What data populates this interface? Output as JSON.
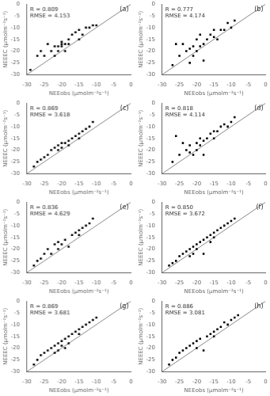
{
  "chart_data": [
    {
      "type": "scatter",
      "title": "(a)",
      "annotations": [
        "R = 0.809",
        "RMSE = 4.153"
      ],
      "xlabel": "NEEobs (μmolm⁻²s⁻¹)",
      "ylabel": "NEEEC (μmolm⁻²s⁻¹)",
      "xlim": [
        -30,
        0
      ],
      "ylim": [
        -30,
        0
      ],
      "xticks": [
        -30,
        -25,
        -20,
        -15,
        -10,
        -5,
        0
      ],
      "yticks": [
        -30,
        -25,
        -20,
        -15,
        -10,
        -5,
        0
      ],
      "grid": false,
      "series": [
        {
          "type": "line",
          "color": "#888888",
          "line_style": "solid",
          "x": [
            -30,
            0
          ],
          "values": [
            -30,
            0
          ]
        },
        {
          "type": "scatter",
          "color": "#000000",
          "marker": "square",
          "x": [
            -29,
            -27,
            -26,
            -25,
            -24,
            -23,
            -22,
            -22,
            -21,
            -21,
            -20,
            -20,
            -20,
            -19,
            -19,
            -18,
            -18,
            -17,
            -16,
            -15,
            -15,
            -14,
            -13,
            -12,
            -11,
            -10
          ],
          "values": [
            -28,
            -22,
            -20,
            -22,
            -17,
            -20,
            -18,
            -22,
            -20,
            -18,
            -18,
            -17,
            -16,
            -20,
            -17,
            -17,
            -15,
            -13,
            -12,
            -15,
            -11,
            -13,
            -10,
            -10,
            -9,
            -9
          ]
        }
      ]
    },
    {
      "type": "scatter",
      "title": "(b)",
      "annotations": [
        "R = 0.777",
        "RMSE = 4.174"
      ],
      "xlabel": "NEEobs (μmolm⁻²s⁻¹)",
      "ylabel": "NEEEC (μmolm⁻²s⁻¹)",
      "xlim": [
        -30,
        0
      ],
      "ylim": [
        -30,
        0
      ],
      "xticks": [
        -30,
        -25,
        -20,
        -15,
        -10,
        -5,
        0
      ],
      "yticks": [
        -30,
        -25,
        -20,
        -15,
        -10,
        -5,
        0
      ],
      "grid": false,
      "series": [
        {
          "type": "line",
          "color": "#888888",
          "line_style": "solid",
          "x": [
            -30,
            0
          ],
          "values": [
            -30,
            0
          ]
        },
        {
          "type": "scatter",
          "color": "#000000",
          "marker": "square",
          "x": [
            -27,
            -26,
            -25,
            -24,
            -23,
            -22,
            -22,
            -21,
            -21,
            -20,
            -20,
            -19,
            -19,
            -18,
            -18,
            -17,
            -16,
            -15,
            -15,
            -14,
            -13,
            -12,
            -11,
            -10,
            -9
          ],
          "values": [
            -26,
            -17,
            -22,
            -17,
            -20,
            -25,
            -19,
            -18,
            -22,
            -20,
            -15,
            -18,
            -13,
            -24,
            -17,
            -15,
            -13,
            -14,
            -11,
            -15,
            -11,
            -11,
            -8,
            -10,
            -7
          ]
        }
      ]
    },
    {
      "type": "scatter",
      "title": "(c)",
      "annotations": [
        "R = 0.869",
        "RMSE = 3.618"
      ],
      "xlabel": "NEEobs (μmolm⁻²s⁻¹)",
      "ylabel": "NEEEC (μmolm⁻²s⁻¹)",
      "xlim": [
        -30,
        0
      ],
      "ylim": [
        -30,
        0
      ],
      "xticks": [
        -30,
        -25,
        -20,
        -15,
        -10,
        -5,
        0
      ],
      "yticks": [
        -30,
        -25,
        -20,
        -15,
        -10,
        -5,
        0
      ],
      "grid": false,
      "series": [
        {
          "type": "line",
          "color": "#888888",
          "line_style": "solid",
          "x": [
            -30,
            0
          ],
          "values": [
            -30,
            0
          ]
        },
        {
          "type": "scatter",
          "color": "#000000",
          "marker": "square",
          "x": [
            -28,
            -27,
            -26,
            -25,
            -24,
            -23,
            -22,
            -21,
            -21,
            -20,
            -20,
            -19,
            -18,
            -18,
            -17,
            -16,
            -15,
            -15,
            -14,
            -13,
            -12,
            -11
          ],
          "values": [
            -27,
            -25,
            -24,
            -23,
            -22,
            -20,
            -19,
            -18,
            -20,
            -17,
            -19,
            -17,
            -16,
            -18,
            -15,
            -14,
            -13,
            -15,
            -12,
            -11,
            -10,
            -8
          ]
        }
      ]
    },
    {
      "type": "scatter",
      "title": "(d)",
      "annotations": [
        "R = 0.818",
        "RMSE = 4.114"
      ],
      "xlabel": "NEEobs (μmolm⁻²s⁻¹)",
      "ylabel": "NEEEC (μmolm⁻²s⁻¹)",
      "xlim": [
        -30,
        0
      ],
      "ylim": [
        -30,
        0
      ],
      "xticks": [
        -30,
        -25,
        -20,
        -15,
        -10,
        -5,
        0
      ],
      "yticks": [
        -30,
        -25,
        -20,
        -15,
        -10,
        -5,
        0
      ],
      "grid": false,
      "series": [
        {
          "type": "line",
          "color": "#888888",
          "line_style": "solid",
          "x": [
            -30,
            0
          ],
          "values": [
            -30,
            0
          ]
        },
        {
          "type": "scatter",
          "color": "#000000",
          "marker": "square",
          "x": [
            -27,
            -26,
            -25,
            -24,
            -23,
            -22,
            -22,
            -21,
            -20,
            -20,
            -19,
            -19,
            -18,
            -18,
            -17,
            -16,
            -15,
            -15,
            -14,
            -13,
            -12,
            -11,
            -10,
            -9
          ],
          "values": [
            -25,
            -14,
            -22,
            -17,
            -20,
            -21,
            -18,
            -22,
            -20,
            -17,
            -18,
            -15,
            -22,
            -16,
            -15,
            -13,
            -12,
            -15,
            -12,
            -10,
            -9,
            -10,
            -8,
            -6
          ]
        }
      ]
    },
    {
      "type": "scatter",
      "title": "(e)",
      "annotations": [
        "R = 0.836",
        "RMSE = 4.629"
      ],
      "xlabel": "NEEobs (μmolm⁻²s⁻¹)",
      "ylabel": "NEEEC (μmolm⁻²s⁻¹)",
      "xlim": [
        -30,
        0
      ],
      "ylim": [
        -30,
        0
      ],
      "xticks": [
        -30,
        -25,
        -20,
        -15,
        -10,
        -5,
        0
      ],
      "yticks": [
        -30,
        -25,
        -20,
        -15,
        -10,
        -5,
        0
      ],
      "grid": false,
      "series": [
        {
          "type": "line",
          "color": "#888888",
          "line_style": "solid",
          "x": [
            -30,
            0
          ],
          "values": [
            -30,
            0
          ]
        },
        {
          "type": "scatter",
          "color": "#000000",
          "marker": "square",
          "x": [
            -28,
            -27,
            -26,
            -25,
            -24,
            -23,
            -22,
            -21,
            -21,
            -20,
            -19,
            -18,
            -17,
            -16,
            -15,
            -15,
            -14,
            -13,
            -12,
            -11
          ],
          "values": [
            -27,
            -25,
            -24,
            -22,
            -20,
            -22,
            -18,
            -20,
            -17,
            -18,
            -16,
            -19,
            -14,
            -13,
            -14,
            -12,
            -11,
            -10,
            -9,
            -7
          ]
        }
      ]
    },
    {
      "type": "scatter",
      "title": "(f)",
      "annotations": [
        "R = 0.850",
        "RMSE = 3.672"
      ],
      "xlabel": "NEEobs (μmolm⁻²s⁻¹)",
      "ylabel": "NEEEC (μmolm⁻²s⁻¹)",
      "xlim": [
        -30,
        0
      ],
      "ylim": [
        -30,
        0
      ],
      "xticks": [
        -30,
        -25,
        -20,
        -15,
        -10,
        -5,
        0
      ],
      "yticks": [
        -30,
        -25,
        -20,
        -15,
        -10,
        -5,
        0
      ],
      "grid": false,
      "series": [
        {
          "type": "line",
          "color": "#888888",
          "line_style": "solid",
          "x": [
            -30,
            0
          ],
          "values": [
            -30,
            0
          ]
        },
        {
          "type": "scatter",
          "color": "#000000",
          "marker": "square",
          "x": [
            -28,
            -27,
            -26,
            -25,
            -24,
            -23,
            -22,
            -22,
            -21,
            -21,
            -20,
            -20,
            -19,
            -18,
            -18,
            -17,
            -16,
            -16,
            -15,
            -15,
            -14,
            -13,
            -12,
            -11,
            -10,
            -9
          ],
          "values": [
            -27,
            -26,
            -25,
            -23,
            -22,
            -21,
            -20,
            -23,
            -19,
            -22,
            -18,
            -20,
            -17,
            -22,
            -16,
            -15,
            -14,
            -17,
            -13,
            -15,
            -12,
            -11,
            -10,
            -9,
            -8,
            -7
          ]
        }
      ]
    },
    {
      "type": "scatter",
      "title": "(g)",
      "annotations": [
        "R = 0.869",
        "RMSE = 3.681"
      ],
      "xlabel": "NEEobs (μmolm⁻²s⁻¹)",
      "ylabel": "NEEEC (μmolm⁻²s⁻¹)",
      "xlim": [
        -30,
        0
      ],
      "ylim": [
        -30,
        0
      ],
      "xticks": [
        -30,
        -25,
        -20,
        -15,
        -10,
        -5,
        0
      ],
      "yticks": [
        -30,
        -25,
        -20,
        -15,
        -10,
        -5,
        0
      ],
      "grid": false,
      "series": [
        {
          "type": "line",
          "color": "#888888",
          "line_style": "solid",
          "x": [
            -30,
            0
          ],
          "values": [
            -30,
            0
          ]
        },
        {
          "type": "scatter",
          "color": "#000000",
          "marker": "square",
          "x": [
            -28,
            -27,
            -26,
            -25,
            -24,
            -23,
            -22,
            -22,
            -21,
            -21,
            -20,
            -20,
            -19,
            -19,
            -18,
            -18,
            -17,
            -16,
            -15,
            -15,
            -14,
            -13,
            -12,
            -11,
            -10
          ],
          "values": [
            -27,
            -25,
            -23,
            -22,
            -21,
            -20,
            -19,
            -22,
            -18,
            -21,
            -17,
            -19,
            -16,
            -20,
            -15,
            -18,
            -14,
            -13,
            -12,
            -14,
            -11,
            -10,
            -9,
            -8,
            -7
          ]
        }
      ]
    },
    {
      "type": "scatter",
      "title": "(h)",
      "annotations": [
        "R = 0.886",
        "RMSE = 3.081"
      ],
      "xlabel": "NEEobs (μmolm⁻²s⁻¹)",
      "ylabel": "NEEEC (μmolm⁻²s⁻¹)",
      "xlim": [
        -30,
        0
      ],
      "ylim": [
        -30,
        0
      ],
      "xticks": [
        -30,
        -25,
        -20,
        -15,
        -10,
        -5,
        0
      ],
      "yticks": [
        -30,
        -25,
        -20,
        -15,
        -10,
        -5,
        0
      ],
      "grid": false,
      "series": [
        {
          "type": "line",
          "color": "#888888",
          "line_style": "solid",
          "x": [
            -30,
            0
          ],
          "values": [
            -30,
            0
          ]
        },
        {
          "type": "scatter",
          "color": "#000000",
          "marker": "square",
          "x": [
            -28,
            -27,
            -26,
            -25,
            -24,
            -23,
            -22,
            -21,
            -20,
            -20,
            -19,
            -18,
            -17,
            -16,
            -15,
            -15,
            -14,
            -13,
            -12,
            -11,
            -10,
            -9,
            -8
          ],
          "values": [
            -27,
            -25,
            -24,
            -22,
            -21,
            -20,
            -19,
            -18,
            -17,
            -20,
            -16,
            -21,
            -15,
            -14,
            -13,
            -15,
            -12,
            -11,
            -9,
            -10,
            -8,
            -7,
            -6
          ]
        }
      ]
    }
  ]
}
